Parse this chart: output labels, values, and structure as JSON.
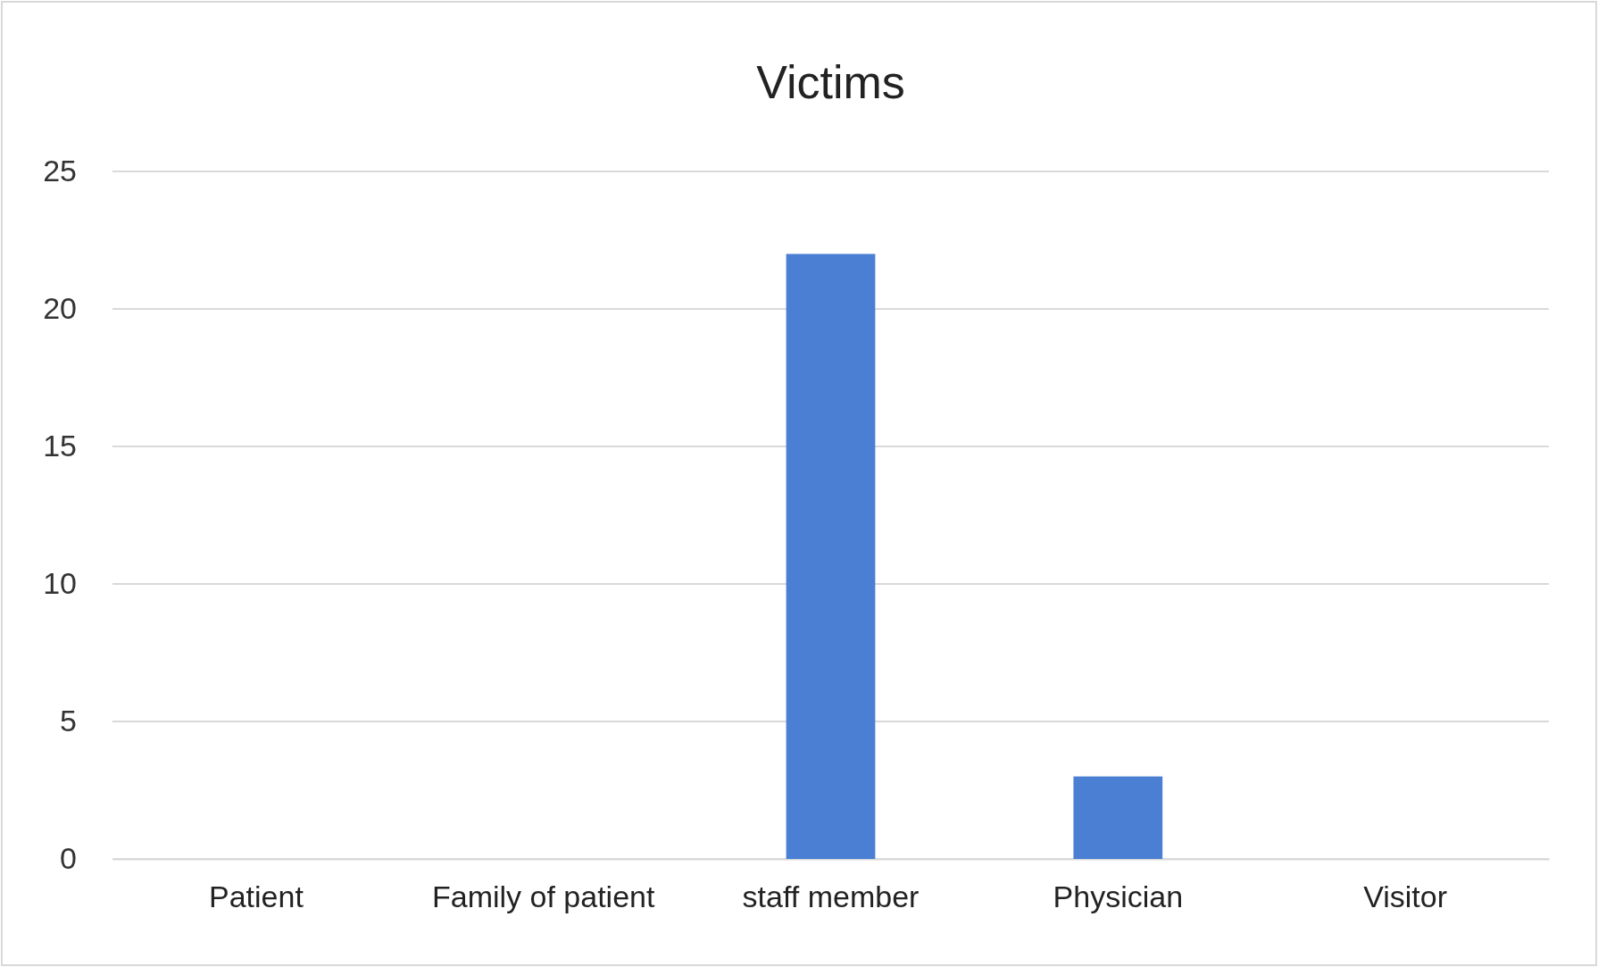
{
  "chart_data": {
    "type": "bar",
    "title": "Victims",
    "categories": [
      "Patient",
      "Family of patient",
      "staff member",
      "Physician",
      "Visitor"
    ],
    "values": [
      0,
      0,
      22,
      3,
      0
    ],
    "color": "#4a7fd4",
    "ylim": [
      0,
      25
    ],
    "yticks": [
      0,
      5,
      10,
      15,
      20,
      25
    ],
    "grid": "y"
  }
}
